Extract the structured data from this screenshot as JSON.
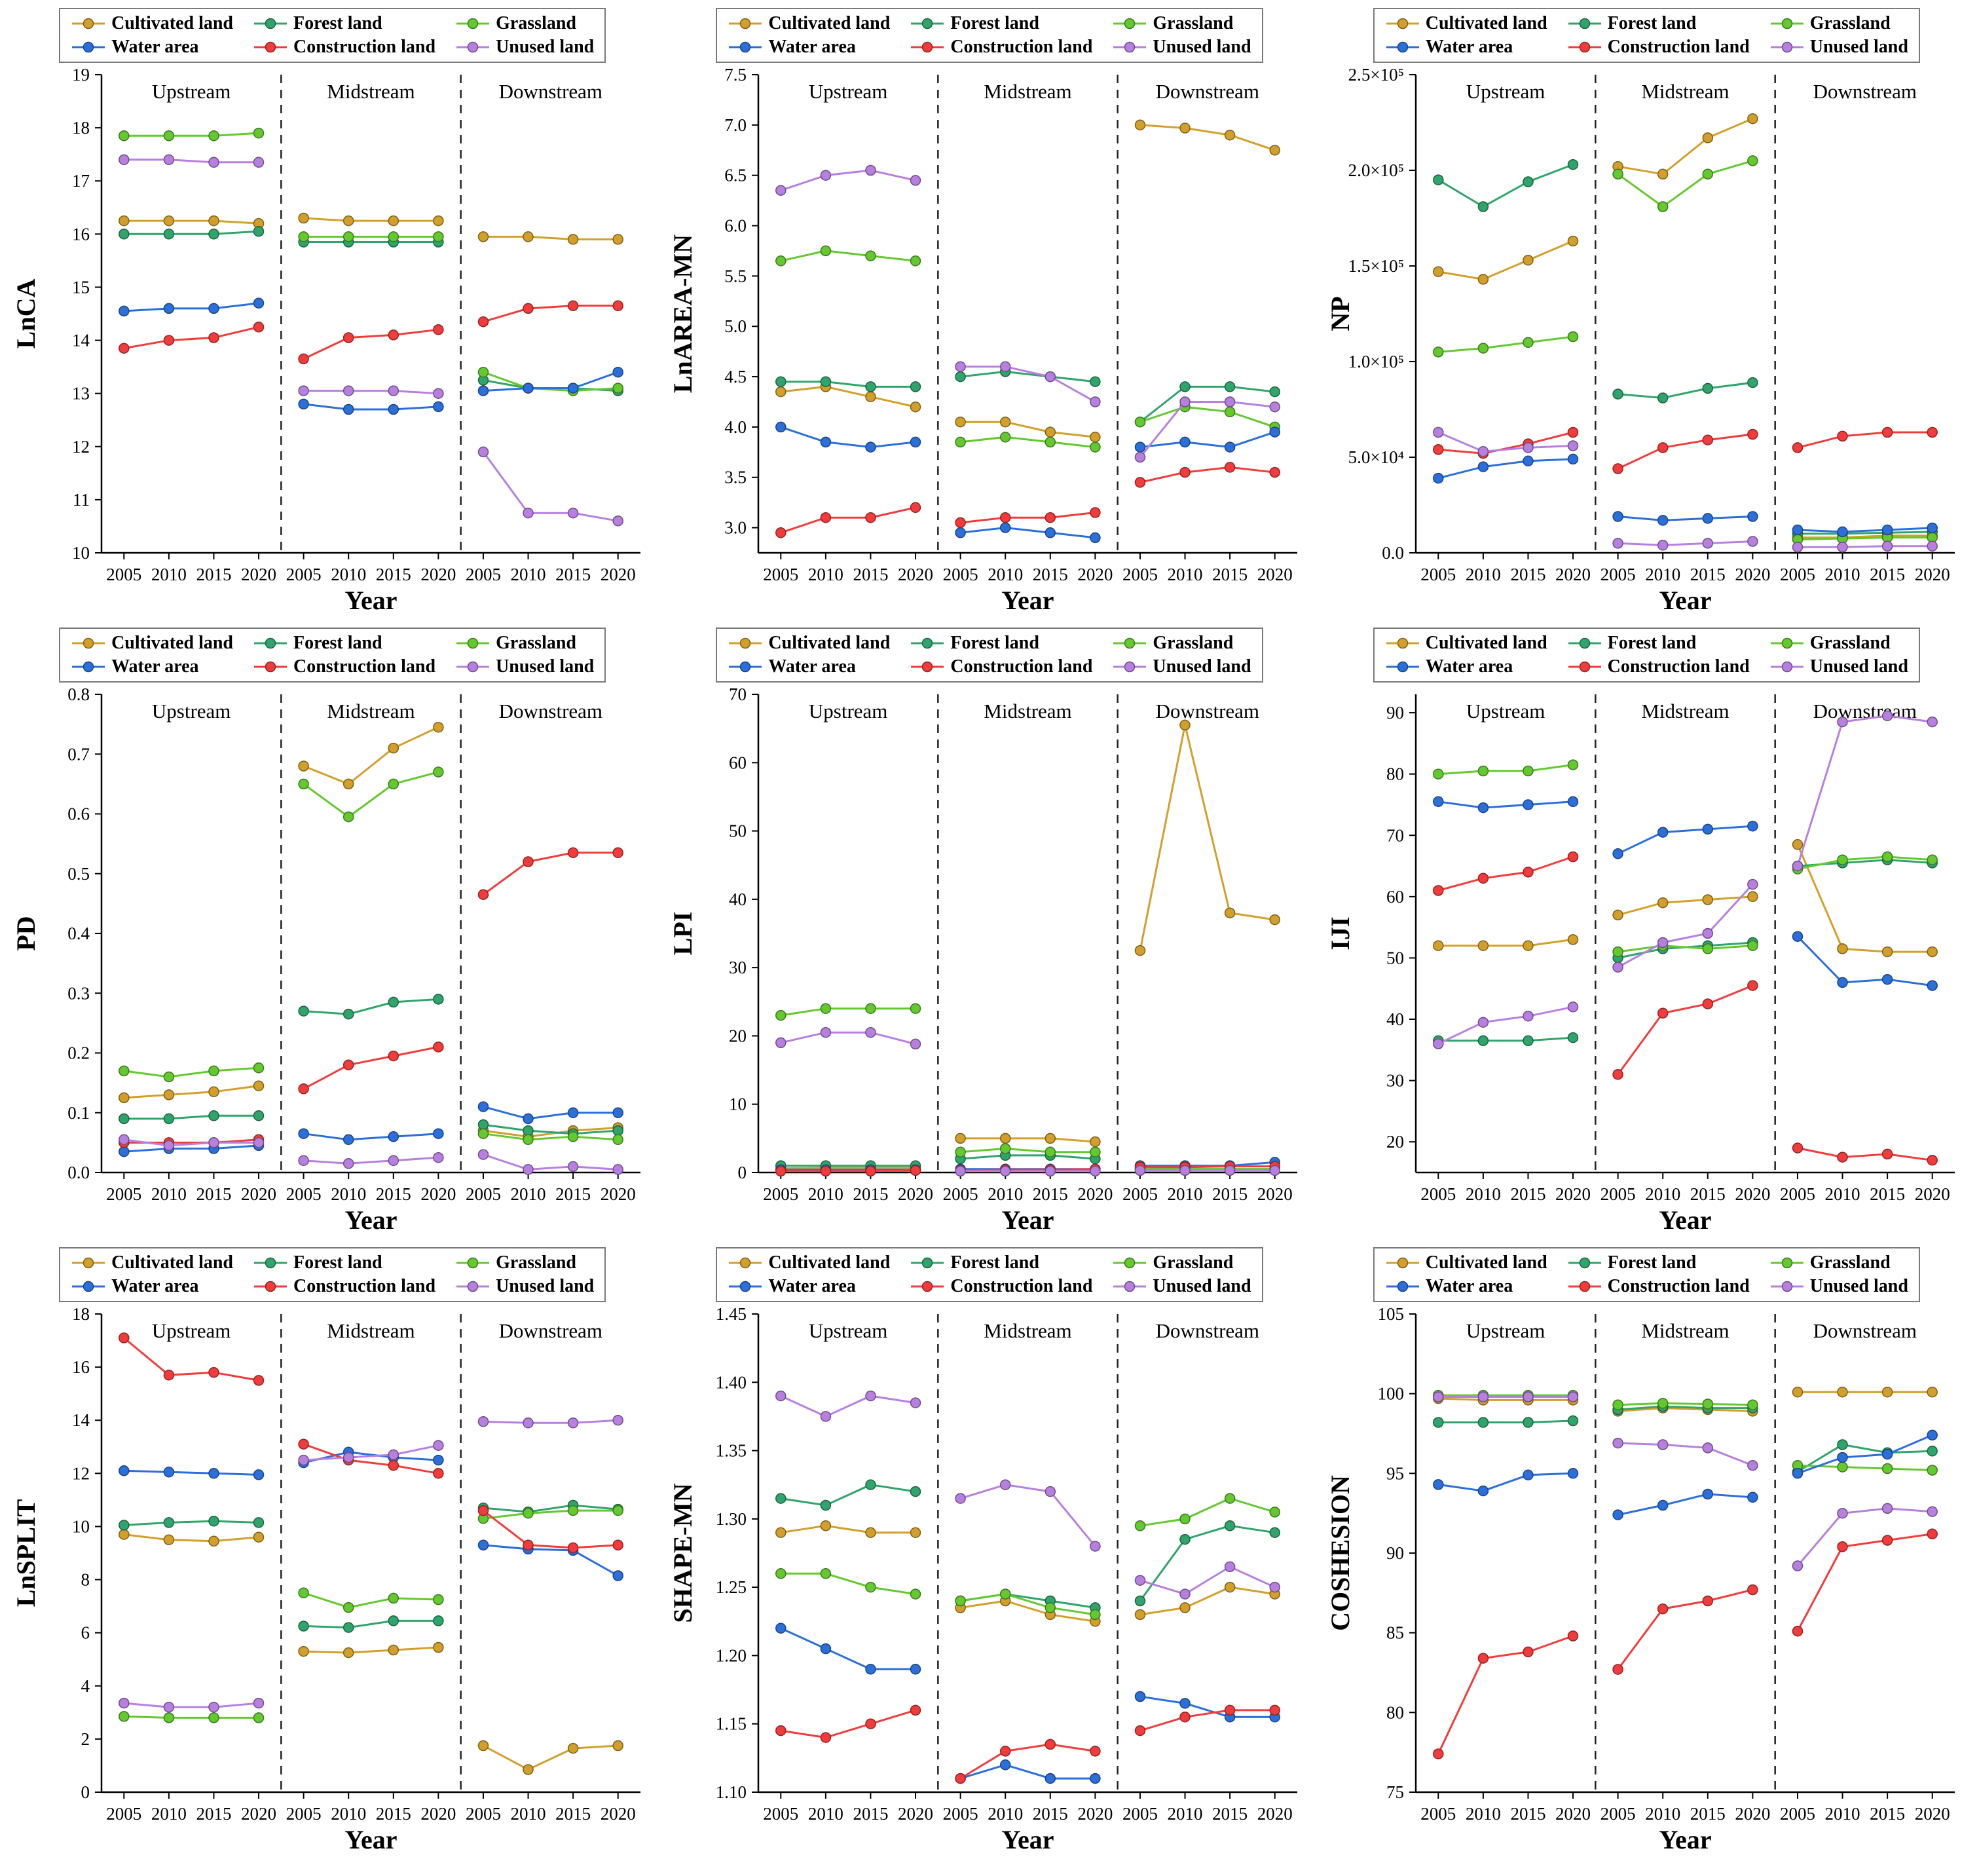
{
  "legend": {
    "items": [
      {
        "label": "Cultivated land",
        "color": "#D2A02A"
      },
      {
        "label": "Forest land",
        "color": "#2FA56B"
      },
      {
        "label": "Grassland",
        "color": "#63C92E"
      },
      {
        "label": "Water area",
        "color": "#2B6FDB"
      },
      {
        "label": "Construction land",
        "color": "#F23B3B"
      },
      {
        "label": "Unused land",
        "color": "#Bختererror"
      }
    ]
  },
  "xlabel": "Year",
  "sections": [
    "Upstream",
    "Midstream",
    "Downstream"
  ],
  "x_years": [
    "2005",
    "2010",
    "2015",
    "2020"
  ],
  "chart_data": []
}
